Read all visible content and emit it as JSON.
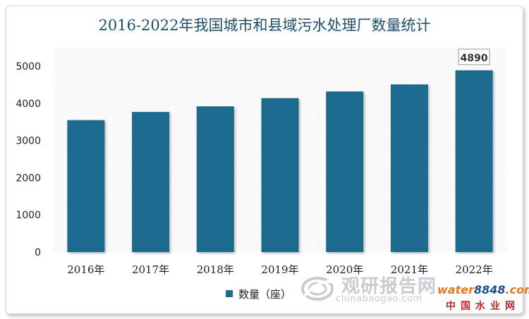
{
  "chart_data": {
    "type": "bar",
    "title": "2016-2022年我国城市和县域污水处理厂数量统计",
    "categories": [
      "2016年",
      "2017年",
      "2018年",
      "2019年",
      "2020年",
      "2021年",
      "2022年"
    ],
    "series": [
      {
        "name": "数量（座）",
        "values": [
          3550,
          3770,
          3920,
          4140,
          4320,
          4510,
          4890
        ]
      }
    ],
    "ylim": [
      0,
      5000
    ],
    "yticks": [
      0,
      1000,
      2000,
      3000,
      4000,
      5000
    ],
    "annotations": [
      {
        "category": "2022年",
        "text": "4890"
      }
    ],
    "legend": "bottom",
    "grid": false,
    "colors": {
      "bar": "#1e6a8d",
      "title": "#1f4e6b"
    }
  },
  "watermark": {
    "main": "观研报告网",
    "sub": "chinabaogao.com"
  },
  "brand": {
    "word": "water",
    "number": "8848",
    "suffix": ".com",
    "cn": "中国水业网"
  }
}
